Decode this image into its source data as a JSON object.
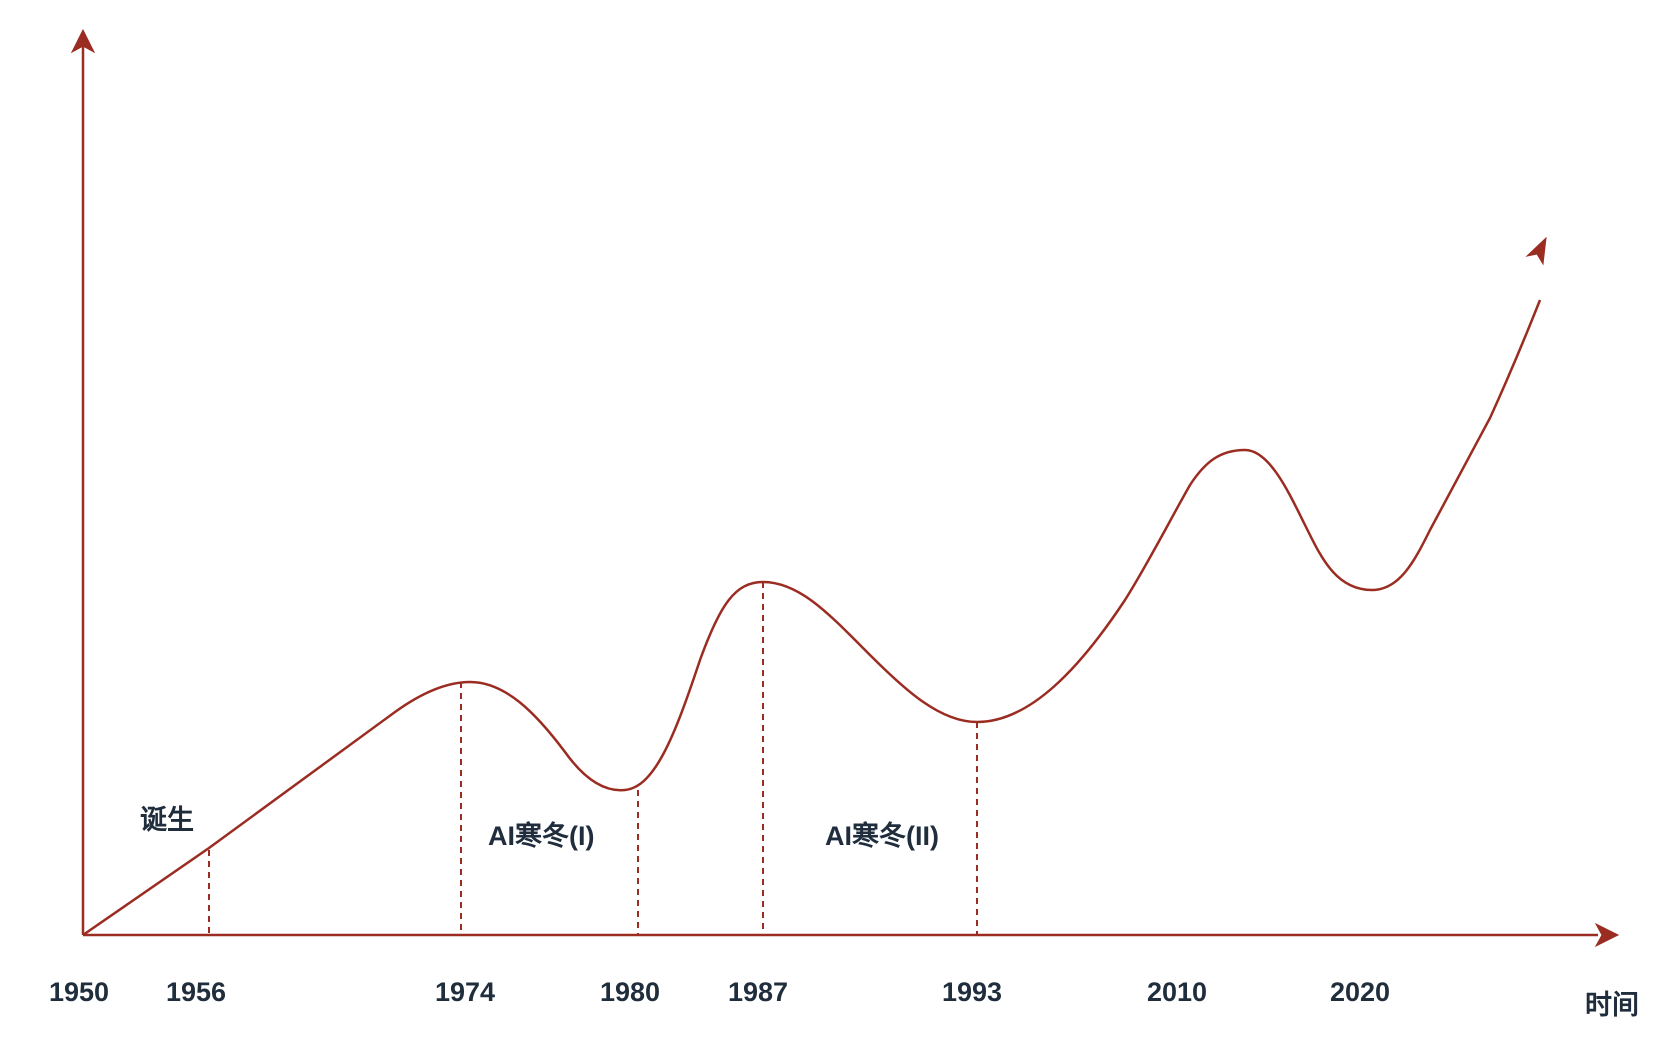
{
  "timeline": {
    "ticks": [
      {
        "id": "1950",
        "label": "1950"
      },
      {
        "id": "1956",
        "label": "1956"
      },
      {
        "id": "1974",
        "label": "1974"
      },
      {
        "id": "1980",
        "label": "1980"
      },
      {
        "id": "1987",
        "label": "1987"
      },
      {
        "id": "1993",
        "label": "1993"
      },
      {
        "id": "2010",
        "label": "2010"
      },
      {
        "id": "2020",
        "label": "2020"
      }
    ],
    "x_axis_label": "时间"
  },
  "periods": {
    "birth": "诞生",
    "winter_1": "AI寒冬(I)",
    "winter_2": "AI寒冬(II)"
  },
  "colors": {
    "line": "#9b2c22",
    "text": "#1f2d3d"
  }
}
